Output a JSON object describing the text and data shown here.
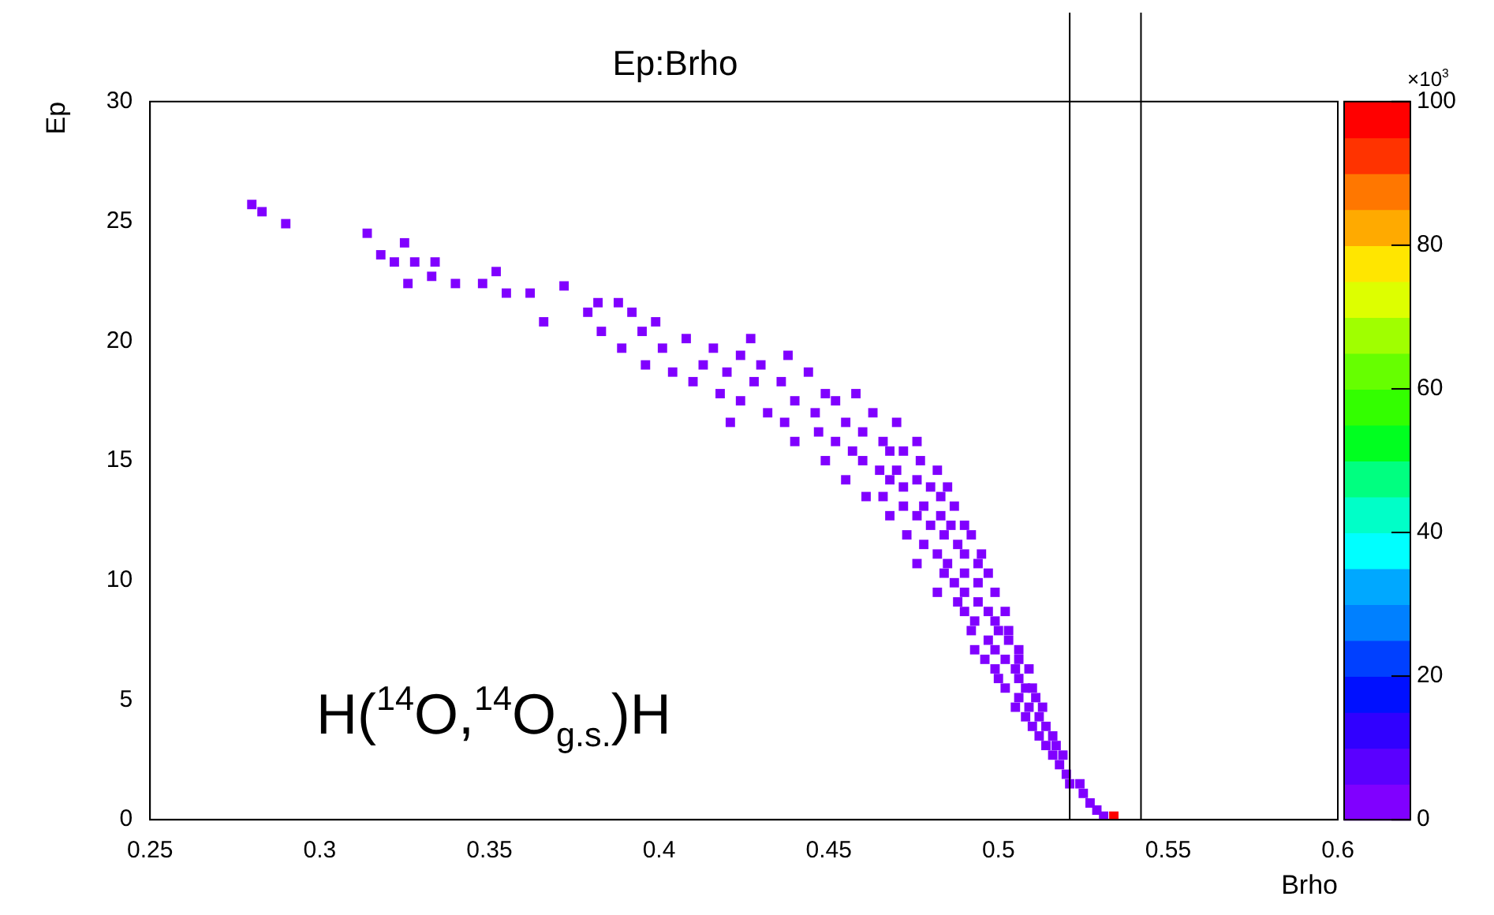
{
  "chart_data": {
    "type": "scatter",
    "title": "Ep:Brho",
    "xlabel": "Brho",
    "ylabel": "Ep",
    "clabel": "×10$^{3}$",
    "marker": "square",
    "legend": false,
    "grid": false,
    "xlim": [
      0.25,
      0.6
    ],
    "xticks": [
      0.25,
      0.3,
      0.35,
      0.4,
      0.45,
      0.5,
      0.55,
      0.6
    ],
    "ylim": [
      0,
      30
    ],
    "yticks": [
      0,
      5,
      10,
      15,
      20,
      25,
      30
    ],
    "clim": [
      0,
      100
    ],
    "cticks": [
      0,
      20,
      40,
      60,
      80,
      100
    ],
    "ref_lines": [
      {
        "axis": "x",
        "value": 0.521,
        "color": "#000000"
      },
      {
        "axis": "x",
        "value": 0.542,
        "color": "#000000"
      }
    ],
    "annotations": [
      "H($^{14}$O,$^{14}$O$_{g.s.}$)H"
    ],
    "series": [
      {
        "x": [
          0.28,
          0.283,
          0.29,
          0.314,
          0.325,
          0.318,
          0.322,
          0.328,
          0.334,
          0.352,
          0.333,
          0.326,
          0.34,
          0.348,
          0.355,
          0.362,
          0.372,
          0.382,
          0.388,
          0.379,
          0.392,
          0.366,
          0.399,
          0.383,
          0.395,
          0.408,
          0.427,
          0.389,
          0.401,
          0.416,
          0.424,
          0.438,
          0.396,
          0.413,
          0.43,
          0.404,
          0.42,
          0.444,
          0.41,
          0.428,
          0.436,
          0.418,
          0.449,
          0.458,
          0.424,
          0.44,
          0.452,
          0.432,
          0.446,
          0.463,
          0.421,
          0.437,
          0.455,
          0.47,
          0.447,
          0.46,
          0.44,
          0.452,
          0.466,
          0.476,
          0.457,
          0.468,
          0.472,
          0.449,
          0.46,
          0.477,
          0.465,
          0.47,
          0.482,
          0.455,
          0.468,
          0.476,
          0.472,
          0.48,
          0.485,
          0.461,
          0.466,
          0.483,
          0.472,
          0.478,
          0.487,
          0.468,
          0.476,
          0.483,
          0.48,
          0.486,
          0.49,
          0.473,
          0.484,
          0.492,
          0.478,
          0.488,
          0.482,
          0.49,
          0.495,
          0.476,
          0.485,
          0.494,
          0.484,
          0.49,
          0.497,
          0.487,
          0.494,
          0.482,
          0.49,
          0.499,
          0.488,
          0.494,
          0.49,
          0.497,
          0.502,
          0.493,
          0.499,
          0.492,
          0.5,
          0.503,
          0.497,
          0.503,
          0.493,
          0.499,
          0.506,
          0.496,
          0.502,
          0.506,
          0.499,
          0.505,
          0.509,
          0.5,
          0.506,
          0.502,
          0.508,
          0.51,
          0.506,
          0.511,
          0.505,
          0.509,
          0.513,
          0.508,
          0.512,
          0.51,
          0.514,
          0.512,
          0.516,
          0.514,
          0.517,
          0.516,
          0.519,
          0.518,
          0.52,
          0.521,
          0.524,
          0.525,
          0.527,
          0.529,
          0.531,
          0.534
        ],
        "values": [
          25.7,
          25.4,
          24.9,
          24.5,
          24.1,
          23.6,
          23.3,
          23.3,
          23.3,
          22.9,
          22.7,
          22.4,
          22.4,
          22.4,
          22.0,
          22.0,
          22.3,
          21.6,
          21.6,
          21.2,
          21.2,
          20.8,
          20.8,
          20.4,
          20.4,
          20.1,
          20.1,
          19.7,
          19.7,
          19.7,
          19.4,
          19.4,
          19.0,
          19.0,
          19.0,
          18.7,
          18.7,
          18.7,
          18.3,
          18.3,
          18.3,
          17.8,
          17.8,
          17.8,
          17.5,
          17.5,
          17.5,
          17.0,
          17.0,
          17.0,
          16.6,
          16.6,
          16.6,
          16.6,
          16.2,
          16.2,
          15.8,
          15.8,
          15.8,
          15.8,
          15.4,
          15.4,
          15.4,
          15.0,
          15.0,
          15.0,
          14.6,
          14.6,
          14.6,
          14.2,
          14.2,
          14.2,
          13.9,
          13.9,
          13.9,
          13.5,
          13.5,
          13.5,
          13.1,
          13.1,
          13.1,
          12.7,
          12.7,
          12.7,
          12.3,
          12.3,
          12.3,
          11.9,
          11.9,
          11.9,
          11.5,
          11.5,
          11.1,
          11.1,
          11.1,
          10.7,
          10.7,
          10.7,
          10.3,
          10.3,
          10.3,
          9.9,
          9.9,
          9.5,
          9.5,
          9.5,
          9.1,
          9.1,
          8.7,
          8.7,
          8.7,
          8.3,
          8.3,
          7.9,
          7.9,
          7.9,
          7.5,
          7.5,
          7.1,
          7.1,
          7.1,
          6.7,
          6.7,
          6.7,
          6.3,
          6.3,
          6.3,
          5.9,
          5.9,
          5.5,
          5.5,
          5.5,
          5.1,
          5.1,
          4.7,
          4.7,
          4.7,
          4.3,
          4.3,
          3.9,
          3.9,
          3.5,
          3.5,
          3.1,
          3.1,
          2.7,
          2.7,
          2.3,
          1.9,
          1.5,
          1.5,
          1.1,
          0.7,
          0.4,
          0.15,
          0.15
        ],
        "cvalues": [
          2,
          2,
          2,
          2,
          2,
          2,
          2,
          2,
          2,
          2,
          2,
          2,
          2,
          2,
          2,
          2,
          2,
          2,
          2,
          2,
          2,
          2,
          2,
          2,
          2,
          2,
          2,
          2,
          2,
          2,
          2,
          2,
          2,
          2,
          2,
          2,
          2,
          2,
          2,
          2,
          2,
          2,
          2,
          2,
          2,
          2,
          2,
          2,
          2,
          2,
          2,
          2,
          2,
          2,
          2,
          2,
          2,
          2,
          2,
          2,
          2,
          2,
          2,
          2,
          2,
          2,
          2,
          2,
          2,
          2,
          2,
          2,
          2,
          2,
          2,
          2,
          2,
          2,
          2,
          2,
          2,
          2,
          2,
          2,
          2,
          2,
          2,
          2,
          2,
          2,
          2,
          2,
          2,
          2,
          2,
          2,
          2,
          2,
          2,
          2,
          2,
          2,
          2,
          2,
          2,
          2,
          2,
          2,
          2,
          2,
          2,
          2,
          2,
          2,
          2,
          2,
          2,
          2,
          2,
          2,
          2,
          2,
          2,
          2,
          2,
          2,
          2,
          2,
          2,
          2,
          2,
          2,
          2,
          2,
          2,
          2,
          2,
          2,
          2,
          2,
          2,
          2,
          2,
          2,
          2,
          2,
          2,
          2,
          2,
          2,
          2,
          2,
          2,
          2,
          2,
          100
        ]
      }
    ]
  }
}
